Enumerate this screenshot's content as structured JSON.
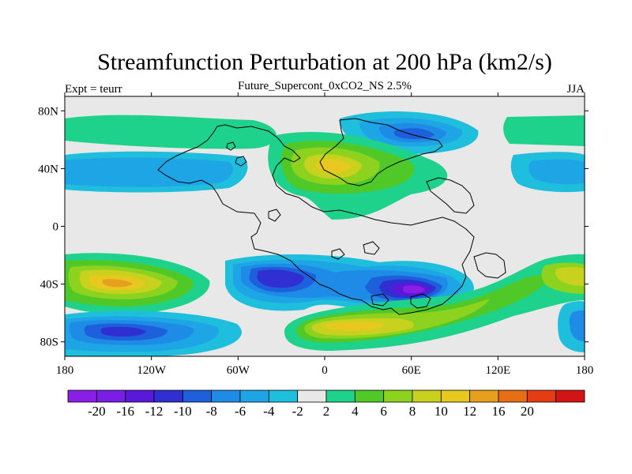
{
  "header": {
    "title": "Streamfunction Perturbation at 200 hPa (km2/s)",
    "left_label": "Expt = teurr",
    "center_label": "Future_Supercont_0xCO2_NS 2.5%",
    "right_label": "JJA"
  },
  "axes": {
    "lon_min": -180,
    "lon_max": 180,
    "lat_min": -90,
    "lat_max": 90,
    "x_ticks": [
      {
        "value": -180,
        "label": "180"
      },
      {
        "value": -120,
        "label": "120W"
      },
      {
        "value": -60,
        "label": "60W"
      },
      {
        "value": 0,
        "label": "0"
      },
      {
        "value": 60,
        "label": "60E"
      },
      {
        "value": 120,
        "label": "120E"
      },
      {
        "value": 180,
        "label": "180"
      }
    ],
    "y_ticks": [
      {
        "value": 80,
        "label": "80N"
      },
      {
        "value": 40,
        "label": "40N"
      },
      {
        "value": 0,
        "label": "0"
      },
      {
        "value": -40,
        "label": "40S"
      },
      {
        "value": -80,
        "label": "80S"
      }
    ]
  },
  "colorbar": {
    "colors": [
      "#8a1ee6",
      "#7a1ee6",
      "#5a18d8",
      "#2f2fd2",
      "#1e60dc",
      "#1e8ce6",
      "#1ea5e6",
      "#1ebedc",
      "#e8e8e8",
      "#1ed28c",
      "#50c828",
      "#8cd21e",
      "#c8d21e",
      "#e6c81e",
      "#e6a01e",
      "#e66e14",
      "#e63c14",
      "#d21414"
    ],
    "labels": [
      "-20",
      "-16",
      "-12",
      "-10",
      "-8",
      "-6",
      "-4",
      "-2",
      "2",
      "4",
      "6",
      "8",
      "10",
      "12",
      "16",
      "20"
    ]
  },
  "colors": {
    "background_field": "#e8e8e8",
    "coastline": "#000000"
  }
}
